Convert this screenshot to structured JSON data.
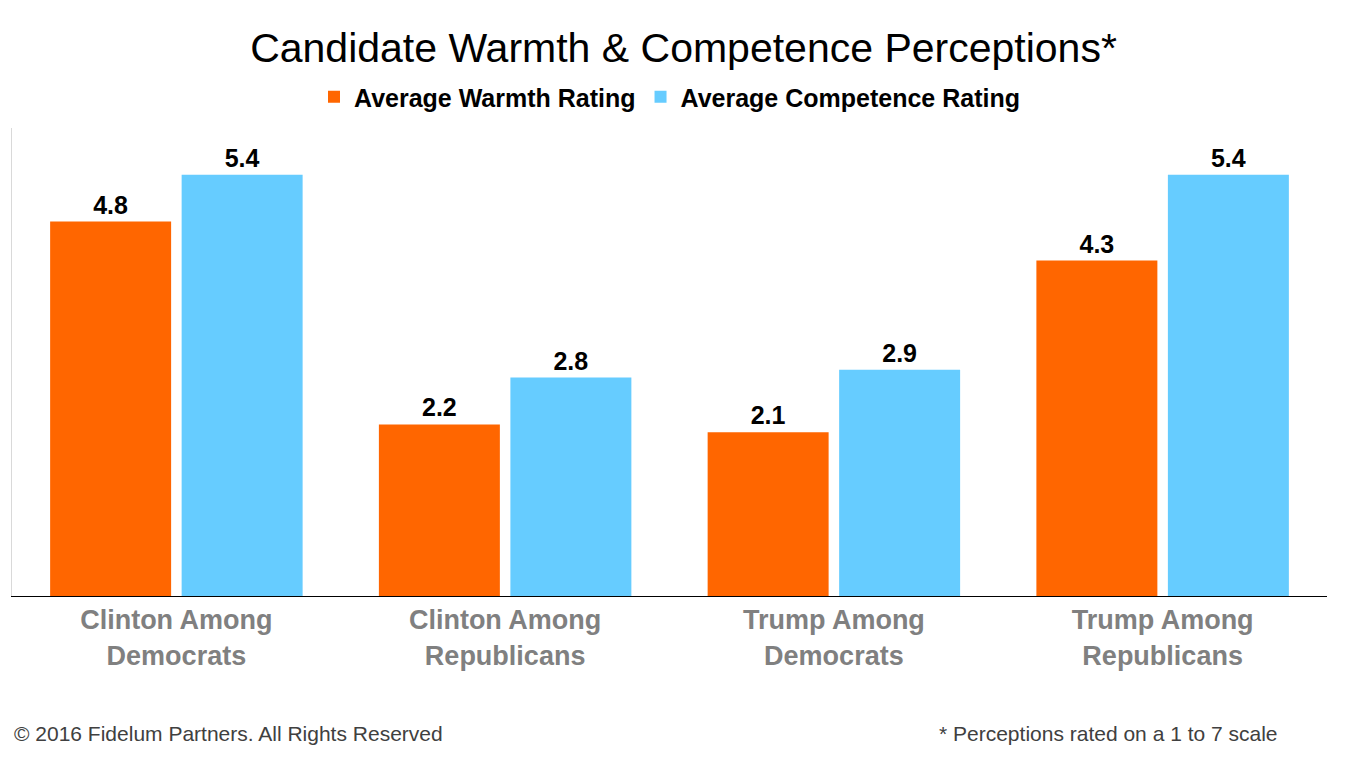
{
  "chart_data": {
    "type": "bar",
    "title": "Candidate Warmth & Competence Perceptions*",
    "categories": [
      "Clinton Among Democrats",
      "Clinton Among Republicans",
      "Trump Among Democrats",
      "Trump Among Republicans"
    ],
    "series": [
      {
        "name": "Average Warmth Rating",
        "color": "#ff6600",
        "values": [
          4.8,
          2.2,
          2.1,
          4.3
        ]
      },
      {
        "name": "Average Competence Rating",
        "color": "#66ccff",
        "values": [
          5.4,
          2.8,
          2.9,
          5.4
        ]
      }
    ],
    "ylim": [
      0,
      6
    ],
    "grid": false,
    "legend": "top",
    "data_labels": true,
    "tick_labels": "x",
    "annotations": [
      "© 2016 Fidelum Partners. All Rights Reserved",
      "* Perceptions rated on a 1 to 7 scale"
    ]
  }
}
